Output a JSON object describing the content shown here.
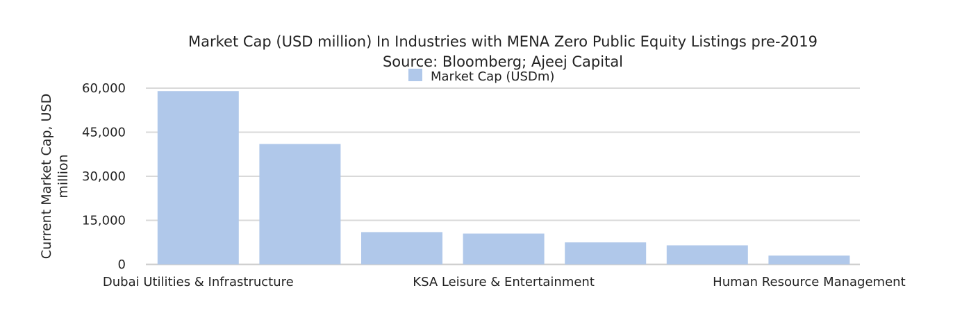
{
  "chart_data": {
    "type": "bar",
    "title": "Market Cap (USD million) In Industries with MENA Zero Public Equity Listings pre-2019",
    "subtitle": "Source: Bloomberg; Ajeej Capital",
    "ylabel_line1": "Current Market Cap, USD",
    "ylabel_line2": "million",
    "xlabel": "",
    "ylim": [
      0,
      60000
    ],
    "yticks": [
      0,
      15000,
      30000,
      45000,
      60000
    ],
    "ytick_labels": [
      "0",
      "15,000",
      "30,000",
      "45,000",
      "60,000"
    ],
    "grid": true,
    "legend_position": "top-center",
    "categories": [
      "Dubai Utilities & Infrastructure",
      "",
      "",
      "KSA Leisure & Entertainment",
      "",
      "",
      "Human Resource Management"
    ],
    "series": [
      {
        "name": "Market Cap (USDm)",
        "color": "#b0c8ea",
        "values": [
          59000,
          41000,
          11000,
          10500,
          7500,
          6500,
          3000
        ]
      }
    ]
  },
  "colors": {
    "bar": "#b0c8ea",
    "grid": "#d9d9d9",
    "baseline": "#d0d0d0",
    "text": "#222222"
  }
}
